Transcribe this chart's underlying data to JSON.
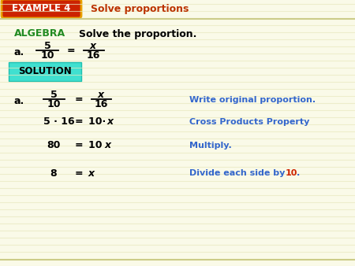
{
  "bg_color": "#fafae8",
  "header_bg": "#cc2200",
  "header_border": "#e8a000",
  "header_text": "EXAMPLE 4",
  "header_text_color": "#ffffff",
  "header_title": "Solve proportions",
  "header_title_color": "#bb3300",
  "algebra_color": "#228B22",
  "algebra_label": "ALGEBRA",
  "algebra_subtitle": "Solve the proportion.",
  "solution_bg": "#40E0D0",
  "solution_text": "SOLUTION",
  "solution_text_color": "#000000",
  "annotation_color": "#3366cc",
  "math_color": "#000000",
  "divide_color": "#cc2200",
  "stripe_color": "#e8e8c0"
}
